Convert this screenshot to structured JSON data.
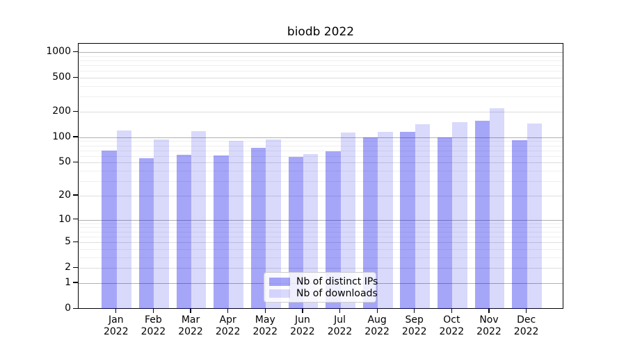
{
  "title": "biodb 2022",
  "chart_data": {
    "type": "bar",
    "title": "biodb 2022",
    "categories": [
      "Jan",
      "Feb",
      "Mar",
      "Apr",
      "May",
      "Jun",
      "Jul",
      "Aug",
      "Sep",
      "Oct",
      "Nov",
      "Dec"
    ],
    "x_tick_year": "2022",
    "series": [
      {
        "name": "Nb of distinct IPs",
        "values": [
          70,
          57,
          62,
          61,
          75,
          59,
          68,
          100,
          115,
          99,
          156,
          93
        ],
        "color": "rgba(0,0,235,0.35)",
        "apparent_hex": "#a6a6f8"
      },
      {
        "name": "Nb of downloads",
        "values": [
          121,
          95,
          118,
          90,
          94,
          63,
          114,
          117,
          143,
          151,
          218,
          145
        ],
        "color": "rgba(0,0,235,0.15)",
        "apparent_hex": "#d9d9fc"
      }
    ],
    "xlabel": "",
    "ylabel": "",
    "yscale": "log1p",
    "ylim": [
      0,
      1300
    ],
    "y_major_ticks": [
      0,
      1,
      2,
      5,
      10,
      20,
      50,
      100,
      200,
      500,
      1000
    ],
    "y_emphasized_gridlines": [
      1,
      10,
      100,
      1000
    ],
    "y_minor_gridlines": [
      3,
      4,
      6,
      7,
      8,
      9,
      30,
      40,
      60,
      70,
      80,
      90,
      300,
      400,
      600,
      700,
      800,
      900
    ],
    "grid": true,
    "legend_position": "lower center",
    "colors": {
      "grid_major_dark": "#b0b0b0",
      "grid_major_light": "#dddddd",
      "grid_minor": "#efefef",
      "axis": "#000000",
      "background": "#ffffff"
    }
  }
}
